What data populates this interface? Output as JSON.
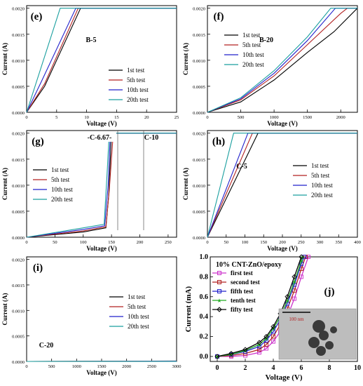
{
  "chart_data": [
    {
      "type": "line",
      "panel_label": "(e)",
      "sample": "B-5",
      "xlabel": "Voltage (V)",
      "ylabel": "Current (A)",
      "xlim": [
        0,
        25
      ],
      "ylim": [
        0,
        0.00205
      ],
      "xticks": [
        "0",
        "5",
        "10",
        "15",
        "20",
        "25"
      ],
      "yticks": [
        "0.0000",
        "0.0005",
        "0.0010",
        "0.0015",
        "0.0020"
      ],
      "legend_position": "center-right",
      "series": [
        {
          "name": "1st test",
          "color": "#000000",
          "x": [
            0,
            3,
            9,
            25
          ],
          "y": [
            0,
            0.0005,
            0.002,
            0.002
          ]
        },
        {
          "name": "5th test",
          "color": "#b22222",
          "x": [
            0,
            3,
            8.6,
            25
          ],
          "y": [
            0,
            0.00055,
            0.002,
            0.002
          ]
        },
        {
          "name": "10th test",
          "color": "#2222cc",
          "x": [
            0,
            2.5,
            8.2,
            25
          ],
          "y": [
            0,
            0.0006,
            0.002,
            0.002
          ]
        },
        {
          "name": "20th test",
          "color": "#1a9f9f",
          "x": [
            0,
            5.6,
            25
          ],
          "y": [
            0,
            0.002,
            0.002
          ]
        }
      ]
    },
    {
      "type": "line",
      "panel_label": "(f)",
      "sample": "B-20",
      "xlabel": "Voltage (V)",
      "ylabel": "Current (A)",
      "xlim": [
        0,
        2250
      ],
      "ylim": [
        0,
        0.00205
      ],
      "xticks": [
        "0",
        "500",
        "1000",
        "1500",
        "2000"
      ],
      "yticks": [
        "0.0000",
        "0.0005",
        "0.0010",
        "0.0015",
        "0.0020"
      ],
      "legend_position": "top-right",
      "series": [
        {
          "name": "1st test",
          "color": "#000000",
          "x": [
            0,
            500,
            1000,
            1500,
            1900,
            2250
          ],
          "y": [
            0,
            0.0002,
            0.00062,
            0.00115,
            0.00155,
            0.002
          ]
        },
        {
          "name": "5th test",
          "color": "#b22222",
          "x": [
            0,
            500,
            1000,
            1500,
            2000,
            2100,
            2250
          ],
          "y": [
            0,
            0.00024,
            0.0007,
            0.0013,
            0.0019,
            0.002,
            0.002
          ]
        },
        {
          "name": "10th test",
          "color": "#2222cc",
          "x": [
            0,
            500,
            1000,
            1500,
            1920,
            2250
          ],
          "y": [
            0,
            0.00026,
            0.00075,
            0.00138,
            0.002,
            0.002
          ]
        },
        {
          "name": "20th test",
          "color": "#1a9f9f",
          "x": [
            0,
            500,
            1000,
            1500,
            1850,
            2250
          ],
          "y": [
            0,
            0.00028,
            0.0008,
            0.00145,
            0.002,
            0.002
          ]
        }
      ]
    },
    {
      "type": "line",
      "panel_label": "(g)",
      "annotations": [
        "C-6.67",
        "C-10"
      ],
      "xlabel": "Voltage (V)",
      "ylabel": "Current (A)",
      "xlim": [
        0,
        265
      ],
      "ylim": [
        0,
        0.00205
      ],
      "xticks": [
        "0",
        "50",
        "100",
        "150",
        "200",
        "250"
      ],
      "yticks": [
        "0.0000",
        "0.0005",
        "0.0010",
        "0.0015",
        "0.0020"
      ],
      "legend_position": "center-left",
      "series": [
        {
          "name": "1st test",
          "color": "#000000",
          "x": [
            0,
            100,
            140,
            145,
            150,
            265
          ],
          "y": [
            0,
            0.0001,
            0.00018,
            0.0008,
            0.002,
            0.002
          ]
        },
        {
          "name": "5th test",
          "color": "#b22222",
          "x": [
            0,
            100,
            140,
            146,
            153,
            265
          ],
          "y": [
            0,
            0.00012,
            0.0002,
            0.0009,
            0.002,
            0.002
          ]
        },
        {
          "name": "10th test",
          "color": "#2222cc",
          "x": [
            0,
            100,
            138,
            144,
            148,
            265
          ],
          "y": [
            0,
            0.00015,
            0.00022,
            0.001,
            0.002,
            0.002
          ]
        },
        {
          "name": "20th test",
          "color": "#1a9f9f",
          "x": [
            0,
            100,
            137,
            142,
            146,
            265
          ],
          "y": [
            0,
            0.00018,
            0.00025,
            0.0012,
            0.002,
            0.002
          ]
        }
      ]
    },
    {
      "type": "line",
      "panel_label": "(h)",
      "sample": "C-5",
      "xlabel": "Voltage (V)",
      "ylabel": "Current (A)",
      "xlim": [
        0,
        400
      ],
      "ylim": [
        0,
        0.00205
      ],
      "xticks": [
        "0",
        "50",
        "100",
        "150",
        "200",
        "250",
        "300",
        "350",
        "400"
      ],
      "yticks": [
        "0.0000",
        "0.0005",
        "0.0010",
        "0.0015",
        "0.0020"
      ],
      "legend_position": "center-right",
      "series": [
        {
          "name": "1st test",
          "color": "#000000",
          "x": [
            0,
            135,
            400
          ],
          "y": [
            0,
            0.002,
            0.002
          ]
        },
        {
          "name": "5th test",
          "color": "#b22222",
          "x": [
            0,
            120,
            400
          ],
          "y": [
            0,
            0.002,
            0.002
          ]
        },
        {
          "name": "10th test",
          "color": "#2222cc",
          "x": [
            0,
            108,
            400
          ],
          "y": [
            0,
            0.002,
            0.002
          ]
        },
        {
          "name": "20th test",
          "color": "#1a9f9f",
          "x": [
            0,
            70,
            400
          ],
          "y": [
            0,
            0.002,
            0.002
          ]
        }
      ]
    },
    {
      "type": "line",
      "panel_label": "(i)",
      "sample": "C-20",
      "xlabel": "Voltage (V)",
      "ylabel": "Current (A)",
      "xlim": [
        0,
        3000
      ],
      "ylim": [
        0,
        0.00205
      ],
      "xticks": [
        "0",
        "500",
        "1000",
        "1500",
        "2000",
        "2500",
        "3000"
      ],
      "yticks": [
        "0.0000",
        "0.0005",
        "0.0010",
        "0.0015",
        "0.0020"
      ],
      "legend_position": "center-right",
      "series": [
        {
          "name": "1st test",
          "color": "#000000",
          "x": [
            0,
            3000
          ],
          "y": [
            0,
            8e-06
          ]
        },
        {
          "name": "5th test",
          "color": "#b22222",
          "x": [
            0,
            3000
          ],
          "y": [
            0,
            6e-06
          ]
        },
        {
          "name": "10th test",
          "color": "#2222cc",
          "x": [
            0,
            3000
          ],
          "y": [
            0,
            4e-06
          ]
        },
        {
          "name": "20th test",
          "color": "#1a9f9f",
          "x": [
            0,
            3000
          ],
          "y": [
            0,
            2e-06
          ]
        }
      ]
    },
    {
      "type": "line",
      "panel_label": "(j)",
      "title": "10% CNT-ZnO/epoxy",
      "inset_scale": "100 nm",
      "xlabel": "Voltage (V)",
      "ylabel": "Current (mA)",
      "xlim": [
        -0.5,
        10
      ],
      "ylim": [
        -0.05,
        1.0
      ],
      "xticks": [
        "0",
        "2",
        "4",
        "6",
        "8",
        "10"
      ],
      "yticks": [
        "0.0",
        "0.2",
        "0.4",
        "0.6",
        "0.8",
        "1.0"
      ],
      "legend_position": "top-left",
      "series": [
        {
          "name": "first test",
          "color": "#cc33cc",
          "marker": "square",
          "x": [
            0,
            1,
            2,
            3,
            3.5,
            4,
            4.5,
            5,
            5.5,
            6,
            6.5
          ],
          "y": [
            0,
            0,
            0.01,
            0.04,
            0.08,
            0.15,
            0.25,
            0.4,
            0.58,
            0.8,
            1.0
          ]
        },
        {
          "name": "second test",
          "color": "#b22222",
          "marker": "square",
          "x": [
            0,
            1,
            2,
            3,
            3.5,
            4,
            4.5,
            5,
            5.5,
            6,
            6.3
          ],
          "y": [
            0,
            0.01,
            0.03,
            0.07,
            0.12,
            0.2,
            0.32,
            0.48,
            0.66,
            0.88,
            1.0
          ]
        },
        {
          "name": "fifth test",
          "color": "#2222cc",
          "marker": "square",
          "x": [
            0,
            1,
            2,
            3,
            3.5,
            4,
            4.5,
            5,
            5.5,
            6,
            6.2
          ],
          "y": [
            0,
            0.02,
            0.05,
            0.1,
            0.16,
            0.25,
            0.37,
            0.53,
            0.72,
            0.93,
            1.0
          ]
        },
        {
          "name": "tenth test",
          "color": "#22aa22",
          "marker": "star",
          "x": [
            0,
            1,
            2,
            3,
            3.5,
            4,
            4.5,
            5,
            5.5,
            6,
            6.1
          ],
          "y": [
            0,
            0.02,
            0.06,
            0.12,
            0.18,
            0.28,
            0.4,
            0.56,
            0.75,
            0.96,
            1.0
          ]
        },
        {
          "name": "fifty test",
          "color": "#000000",
          "marker": "diamond",
          "x": [
            0,
            1,
            2,
            3,
            3.5,
            4,
            4.5,
            5,
            5.5,
            6
          ],
          "y": [
            0,
            0.03,
            0.07,
            0.14,
            0.2,
            0.3,
            0.43,
            0.6,
            0.8,
            1.0
          ]
        }
      ]
    }
  ]
}
